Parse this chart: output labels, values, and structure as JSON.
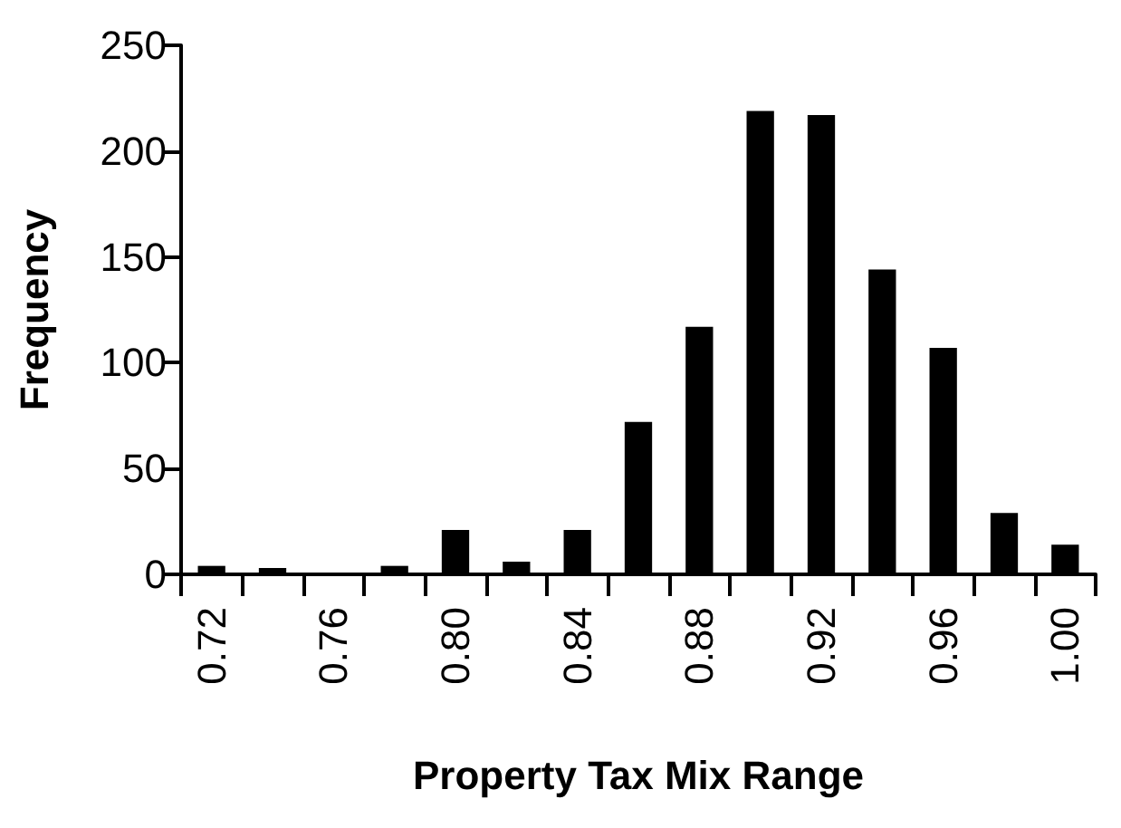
{
  "chart_data": {
    "type": "bar",
    "xlabel": "Property Tax Mix Range",
    "ylabel": "Frequency",
    "categories": [
      "0.72",
      null,
      "0.76",
      null,
      "0.80",
      null,
      "0.84",
      null,
      "0.88",
      null,
      "0.92",
      null,
      "0.96",
      null,
      "1.00"
    ],
    "values": [
      4,
      3,
      0,
      4,
      21,
      6,
      21,
      72,
      117,
      219,
      217,
      144,
      107,
      29,
      14
    ],
    "color": "#000000",
    "ylim": [
      0,
      250
    ],
    "yticks": [
      0,
      50,
      100,
      150,
      200,
      250
    ],
    "grid": false
  }
}
